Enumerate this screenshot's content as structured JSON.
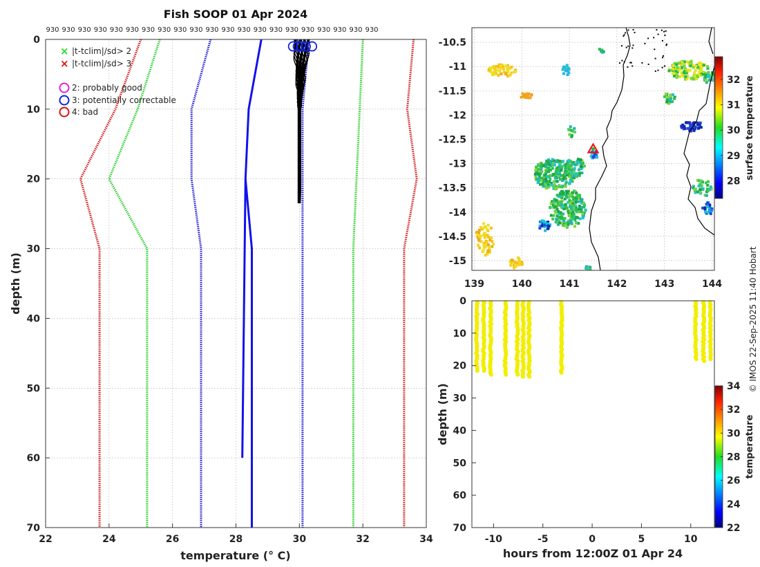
{
  "chart_data": [
    {
      "type": "line",
      "title": "Fish SOOP 01 Apr 2024",
      "xlabel": "temperature (° C)",
      "ylabel": "depth (m)",
      "xlim": [
        22,
        34
      ],
      "ylim": [
        70,
        0
      ],
      "xticks": [
        22,
        24,
        26,
        28,
        30,
        32,
        34
      ],
      "yticks": [
        0,
        10,
        20,
        30,
        40,
        50,
        60,
        70
      ],
      "top_tick_label": "930",
      "top_tick_count": 21,
      "grid": true,
      "legend": [
        {
          "label": "|t-tclim|/sd> 2",
          "marker": "x",
          "color": "#22dd22"
        },
        {
          "label": "|t-tclim|/sd> 3",
          "marker": "x",
          "color": "#dd1111"
        },
        {
          "label": "2: probably good",
          "marker": "o",
          "color": "#dd22dd"
        },
        {
          "label": "3: potentially correctable",
          "marker": "o",
          "color": "#1122dd"
        },
        {
          "label": "4: bad",
          "marker": "o",
          "color": "#dd1111"
        }
      ],
      "series": [
        {
          "name": "clim -3sd",
          "color": "#cc1111",
          "depths": [
            0,
            10,
            20,
            30,
            70
          ],
          "values": [
            25.0,
            24.2,
            23.1,
            23.7,
            23.7
          ]
        },
        {
          "name": "clim -2sd",
          "color": "#22cc22",
          "depths": [
            0,
            10,
            20,
            30,
            70
          ],
          "values": [
            25.6,
            24.9,
            24.0,
            25.2,
            25.2
          ]
        },
        {
          "name": "clim -1sd",
          "color": "#1111cc",
          "depths": [
            0,
            10,
            20,
            30,
            70
          ],
          "values": [
            27.2,
            26.6,
            26.6,
            26.9,
            26.9
          ]
        },
        {
          "name": "clim +1sd",
          "color": "#1111cc",
          "depths": [
            0,
            10,
            20,
            30,
            70
          ],
          "values": [
            30.3,
            30.1,
            30.1,
            30.1,
            30.1
          ]
        },
        {
          "name": "clim +2sd",
          "color": "#22cc22",
          "depths": [
            0,
            10,
            20,
            30,
            70
          ],
          "values": [
            32.0,
            31.9,
            31.8,
            31.7,
            31.7
          ]
        },
        {
          "name": "clim +3sd",
          "color": "#cc1111",
          "depths": [
            0,
            10,
            20,
            30,
            70
          ],
          "values": [
            33.6,
            33.4,
            33.7,
            33.3,
            33.3
          ]
        },
        {
          "name": "clim mean",
          "color": "#1111ee",
          "depths": [
            0,
            10,
            20,
            30,
            70
          ],
          "values": [
            28.8,
            28.4,
            28.3,
            28.5,
            28.5
          ]
        },
        {
          "name": "profile to 60m",
          "color": "#1111ee",
          "depths": [
            20,
            60
          ],
          "values": [
            28.3,
            28.2
          ]
        }
      ],
      "profiles": {
        "color": "#000000",
        "temp_range": [
          29.8,
          30.3
        ],
        "depth_range": [
          0,
          23.5
        ]
      },
      "flag_circles": {
        "color": "#1122dd",
        "depth": 1,
        "values": [
          29.8,
          29.95,
          30.05,
          30.2,
          30.4
        ]
      }
    },
    {
      "type": "heatmap",
      "kind": "map",
      "xlim": [
        138.95,
        144.05
      ],
      "ylim": [
        -15.2,
        -10.2
      ],
      "xticks": [
        139,
        140,
        141,
        142,
        143,
        144
      ],
      "yticks": [
        -10.5,
        -11,
        -11.5,
        -12,
        -12.5,
        -13,
        -13.5,
        -14,
        -14.5,
        -15
      ],
      "colorbar": {
        "label": "surface temperature",
        "range": [
          27.3,
          32.9
        ],
        "ticks": [
          28,
          29,
          30,
          31,
          32
        ]
      },
      "vessel_marker": {
        "lon": 141.5,
        "lat": -12.7
      }
    },
    {
      "type": "scatter",
      "xlabel": "hours from 12:00Z 01 Apr 24",
      "ylabel": "depth (m)",
      "xlim": [
        -12.2,
        12.4
      ],
      "ylim": [
        70,
        0
      ],
      "xticks": [
        -10,
        -5,
        0,
        5,
        10
      ],
      "yticks": [
        0,
        10,
        20,
        30,
        40,
        50,
        60,
        70
      ],
      "colorbar": {
        "label": "temperature",
        "range": [
          22,
          34
        ],
        "ticks": [
          22,
          24,
          26,
          28,
          30,
          32,
          34
        ]
      },
      "point_color": "#f2ee00",
      "casts": [
        {
          "hour": -11.7,
          "max_depth": 22
        },
        {
          "hour": -11.0,
          "max_depth": 22
        },
        {
          "hour": -10.3,
          "max_depth": 23
        },
        {
          "hour": -8.8,
          "max_depth": 23
        },
        {
          "hour": -7.6,
          "max_depth": 23
        },
        {
          "hour": -7.0,
          "max_depth": 23.5
        },
        {
          "hour": -6.4,
          "max_depth": 23.5
        },
        {
          "hour": -3.1,
          "max_depth": 22.5
        },
        {
          "hour": 10.5,
          "max_depth": 18.5
        },
        {
          "hour": 11.3,
          "max_depth": 19
        },
        {
          "hour": 12.0,
          "max_depth": 18.5
        }
      ]
    }
  ],
  "footer": "© IMOS 22-Sep-2025 11:40 Hobart"
}
